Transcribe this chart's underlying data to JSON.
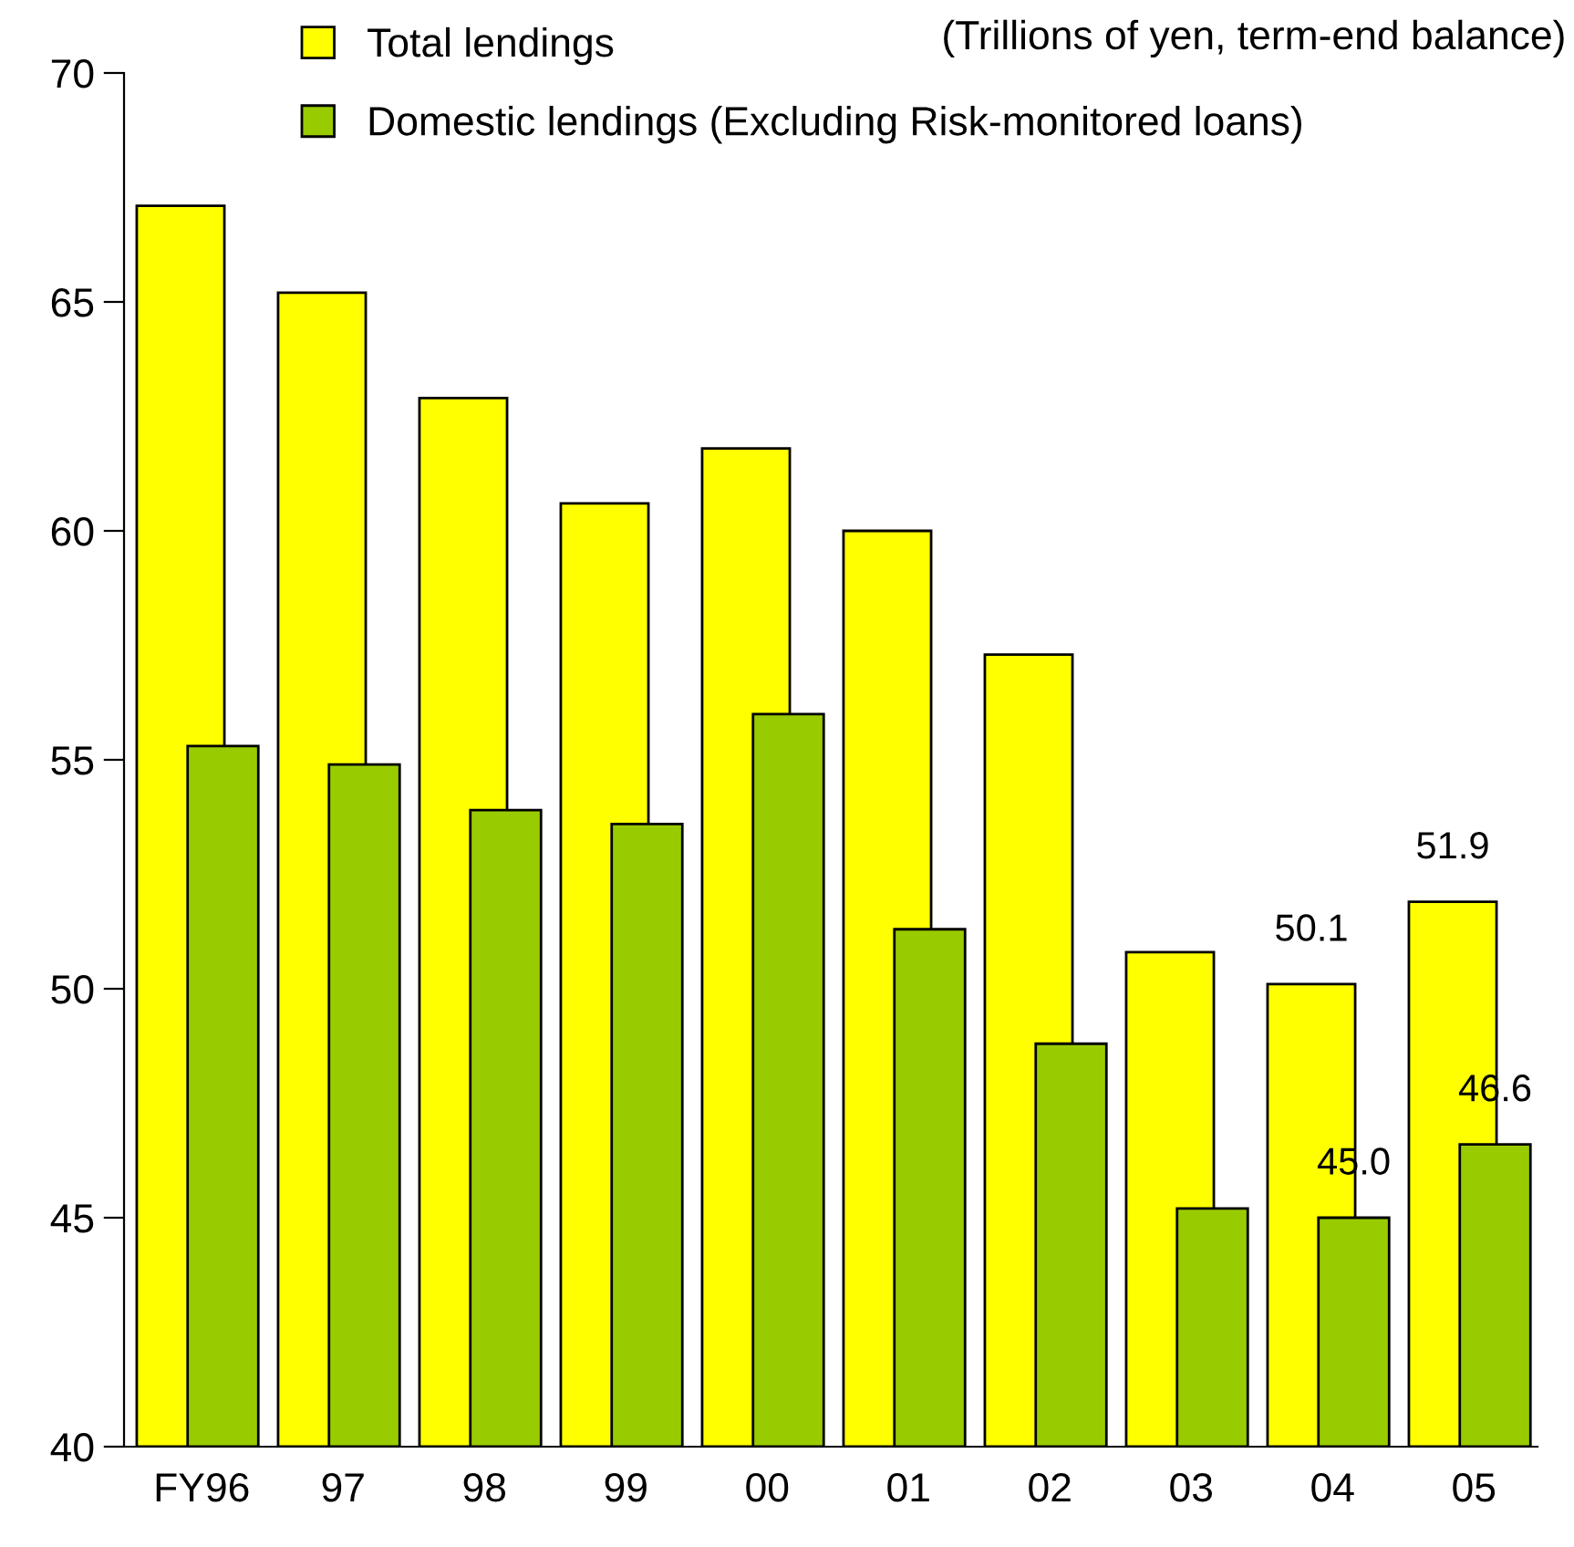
{
  "chart_data": {
    "type": "bar",
    "categories": [
      "FY96",
      "97",
      "98",
      "99",
      "00",
      "01",
      "02",
      "03",
      "04",
      "05"
    ],
    "series": [
      {
        "name": "Total lendings",
        "color": "#ffff00",
        "values": [
          67.1,
          65.2,
          62.9,
          60.6,
          61.8,
          60.0,
          57.3,
          50.8,
          50.1,
          51.9
        ],
        "value_labels": [
          null,
          null,
          null,
          null,
          null,
          null,
          null,
          null,
          "50.1",
          "51.9"
        ]
      },
      {
        "name": "Domestic lendings (Excluding Risk-monitored loans)",
        "color": "#99cc00",
        "values": [
          55.3,
          54.9,
          53.9,
          53.6,
          56.0,
          51.3,
          48.8,
          45.2,
          45.0,
          46.6
        ],
        "value_labels": [
          null,
          null,
          null,
          null,
          null,
          null,
          null,
          null,
          "45.0",
          "46.6"
        ]
      }
    ],
    "ylim": [
      40,
      70
    ],
    "yticks": [
      40,
      45,
      50,
      55,
      60,
      65,
      70
    ],
    "grid": false,
    "legend": "top left",
    "annotations": [
      "(Trillions of yen, term-end balance)"
    ]
  }
}
